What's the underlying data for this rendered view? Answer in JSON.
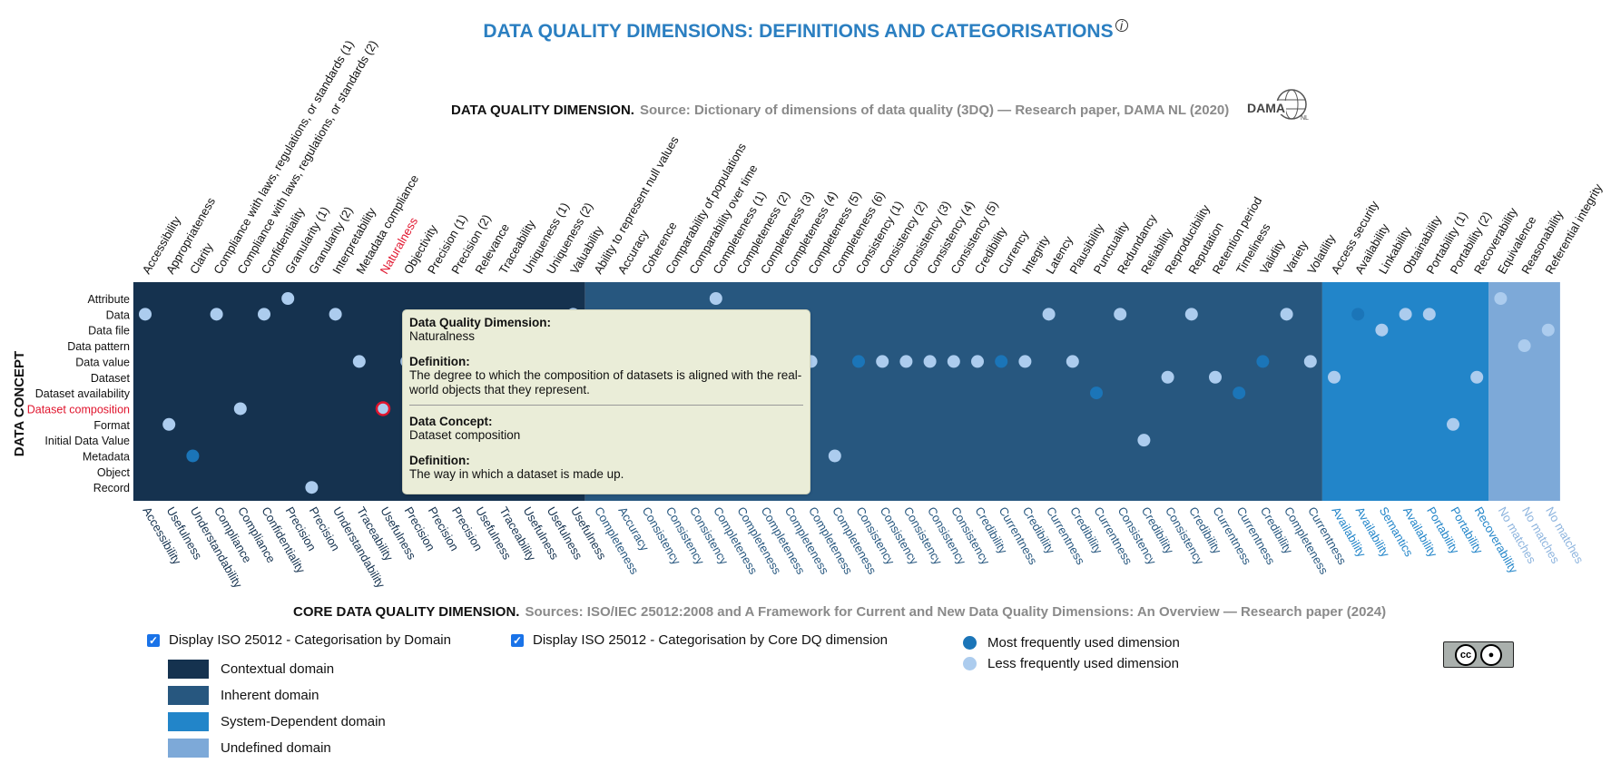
{
  "title": "DATA QUALITY DIMENSIONS: DEFINITIONS AND CATEGORISATIONS",
  "title_info_icon": "info-icon",
  "top_source": {
    "heading": "DATA QUALITY DIMENSION.",
    "text": "Source: Dictionary of dimensions of data quality (3DQ) — Research paper, DAMA NL (2020)",
    "logo_text": "DAMA",
    "logo_suffix": "NL"
  },
  "bottom_source": {
    "heading": "CORE DATA QUALITY DIMENSION.",
    "text": "Sources: ISO/IEC 25012:2008 and A Framework for Current and New Data Quality Dimensions: An Overview — Research paper (2024)"
  },
  "y_axis_label": "DATA CONCEPT",
  "highlighted_dimension": "Naturalness",
  "highlighted_concept": "Dataset composition",
  "checkboxes": [
    {
      "label": "Display ISO 25012 - Categorisation by Domain",
      "checked": true
    },
    {
      "label": "Display ISO 25012 - Categorisation by Core DQ dimension",
      "checked": true
    }
  ],
  "domain_legend": [
    {
      "label": "Contextual domain",
      "color": "#15324f"
    },
    {
      "label": "Inherent domain",
      "color": "#27577f"
    },
    {
      "label": "System-Dependent domain",
      "color": "#2285c9"
    },
    {
      "label": "Undefined domain",
      "color": "#7da9d8"
    }
  ],
  "frequency_legend": [
    {
      "label": "Most frequently used dimension",
      "color": "#1b75b8"
    },
    {
      "label": "Less frequently used dimension",
      "color": "#acccee"
    }
  ],
  "cc_badge": {
    "icon": "cc-by-license-icon",
    "text": "cc"
  },
  "tooltip": {
    "dim_heading": "Data Quality Dimension:",
    "dim_value": "Naturalness",
    "def_heading": "Definition:",
    "def_value": "The degree to which the composition of datasets is aligned with the real-world objects that they represent.",
    "concept_heading": "Data Concept:",
    "concept_value": "Dataset composition",
    "def2_heading": "Definition:",
    "def2_value": "The way in which a dataset is made up."
  },
  "chart_data": {
    "type": "scatter",
    "title": "DATA QUALITY DIMENSIONS: DEFINITIONS AND CATEGORISATIONS",
    "ylabel": "DATA CONCEPT",
    "concepts": [
      "Attribute",
      "Data",
      "Data file",
      "Data pattern",
      "Data value",
      "Dataset",
      "Dataset availability",
      "Dataset composition",
      "Format",
      "Initial Data Value",
      "Metadata",
      "Object",
      "Record"
    ],
    "dimensions": [
      "Accessibility",
      "Appropriateness",
      "Clarity",
      "Compliance with laws, regulations, or standards (1)",
      "Compliance with laws, regulations, or standards (2)",
      "Confidentiality",
      "Granularity (1)",
      "Granularity (2)",
      "Interpretability",
      "Metadata compliance",
      "Naturalness",
      "Objectivity",
      "Precision (1)",
      "Precision (2)",
      "Relevance",
      "Traceability",
      "Uniqueness (1)",
      "Uniqueness (2)",
      "Valuability",
      "Ability to represent null values",
      "Accuracy",
      "Coherence",
      "Comparability of populations",
      "Comparability over time",
      "Completeness (1)",
      "Completeness (2)",
      "Completeness (3)",
      "Completeness (4)",
      "Completeness (5)",
      "Completeness (6)",
      "Consistency (1)",
      "Consistency (2)",
      "Consistency (3)",
      "Consistency (4)",
      "Consistency (5)",
      "Credibility",
      "Currency",
      "Integrity",
      "Latency",
      "Plausibility",
      "Punctuality",
      "Redundancy",
      "Reliability",
      "Reproducibility",
      "Reputation",
      "Retention period",
      "Timeliness",
      "Validity",
      "Variety",
      "Volatility",
      "Access security",
      "Availability",
      "Linkability",
      "Obtainability",
      "Portability (1)",
      "Portability (2)",
      "Recoverability",
      "Equivalence",
      "Reasonability",
      "Referential integrity"
    ],
    "core_dimensions": [
      "Accessibility",
      "Usefulness",
      "Understandability",
      "Compliance",
      "Compliance",
      "Confidentiality",
      "Precision",
      "Precision",
      "Understandability",
      "Traceability",
      "Usefulness",
      "Precision",
      "Precision",
      "Precision",
      "Usefulness",
      "Traceability",
      "Usefulness",
      "Usefulness",
      "Usefulness",
      "Completeness",
      "Accuracy",
      "Consistency",
      "Consistency",
      "Consistency",
      "Completeness",
      "Completeness",
      "Completeness",
      "Completeness",
      "Completeness",
      "Completeness",
      "Consistency",
      "Consistency",
      "Consistency",
      "Consistency",
      "Consistency",
      "Credibility",
      "Currentness",
      "Credibility",
      "Currentness",
      "Credibility",
      "Currentness",
      "Consistency",
      "Credibility",
      "Consistency",
      "Credibility",
      "Currentness",
      "Currentness",
      "Credibility",
      "Completeness",
      "Currentness",
      "Availability",
      "Availability",
      "Semantics",
      "Availability",
      "Portability",
      "Portability",
      "Recoverability",
      "No matches",
      "No matches",
      "No matches"
    ],
    "domains": [
      "contextual",
      "contextual",
      "contextual",
      "contextual",
      "contextual",
      "contextual",
      "contextual",
      "contextual",
      "contextual",
      "contextual",
      "contextual",
      "contextual",
      "contextual",
      "contextual",
      "contextual",
      "contextual",
      "contextual",
      "contextual",
      "contextual",
      "inherent",
      "inherent",
      "inherent",
      "inherent",
      "inherent",
      "inherent",
      "inherent",
      "inherent",
      "inherent",
      "inherent",
      "inherent",
      "inherent",
      "inherent",
      "inherent",
      "inherent",
      "inherent",
      "inherent",
      "inherent",
      "inherent",
      "inherent",
      "inherent",
      "inherent",
      "inherent",
      "inherent",
      "inherent",
      "inherent",
      "inherent",
      "inherent",
      "inherent",
      "inherent",
      "inherent",
      "system",
      "system",
      "system",
      "system",
      "system",
      "system",
      "system",
      "undefined",
      "undefined",
      "undefined"
    ],
    "points": [
      {
        "x": "Accessibility",
        "y": "Data",
        "freq": "less"
      },
      {
        "x": "Appropriateness",
        "y": "Format",
        "freq": "less"
      },
      {
        "x": "Clarity",
        "y": "Metadata",
        "freq": "most"
      },
      {
        "x": "Compliance with laws, regulations, or standards (1)",
        "y": "Data",
        "freq": "less"
      },
      {
        "x": "Compliance with laws, regulations, or standards (2)",
        "y": "Dataset composition",
        "freq": "less"
      },
      {
        "x": "Confidentiality",
        "y": "Data",
        "freq": "less"
      },
      {
        "x": "Granularity (1)",
        "y": "Attribute",
        "freq": "less"
      },
      {
        "x": "Granularity (2)",
        "y": "Record",
        "freq": "less"
      },
      {
        "x": "Interpretability",
        "y": "Data",
        "freq": "less"
      },
      {
        "x": "Metadata compliance",
        "y": "Data value",
        "freq": "less"
      },
      {
        "x": "Naturalness",
        "y": "Dataset composition",
        "freq": "less"
      },
      {
        "x": "Objectivity",
        "y": "Data value",
        "freq": "less"
      },
      {
        "x": "Valuability",
        "y": "Data",
        "freq": "less"
      },
      {
        "x": "Ability to represent null values",
        "y": "Format",
        "freq": "less"
      },
      {
        "x": "Comparability over time",
        "y": "Data value",
        "freq": "less"
      },
      {
        "x": "Completeness (1)",
        "y": "Attribute",
        "freq": "less"
      },
      {
        "x": "Completeness (3)",
        "y": "Data file",
        "freq": "less"
      },
      {
        "x": "Completeness (5)",
        "y": "Data value",
        "freq": "less"
      },
      {
        "x": "Completeness (6)",
        "y": "Metadata",
        "freq": "less"
      },
      {
        "x": "Consistency (1)",
        "y": "Data value",
        "freq": "most"
      },
      {
        "x": "Consistency (2)",
        "y": "Data value",
        "freq": "less"
      },
      {
        "x": "Consistency (3)",
        "y": "Data value",
        "freq": "less"
      },
      {
        "x": "Consistency (4)",
        "y": "Data value",
        "freq": "less"
      },
      {
        "x": "Consistency (5)",
        "y": "Data value",
        "freq": "less"
      },
      {
        "x": "Credibility",
        "y": "Data value",
        "freq": "less"
      },
      {
        "x": "Currency",
        "y": "Data value",
        "freq": "most"
      },
      {
        "x": "Integrity",
        "y": "Data value",
        "freq": "less"
      },
      {
        "x": "Latency",
        "y": "Data",
        "freq": "less"
      },
      {
        "x": "Plausibility",
        "y": "Data value",
        "freq": "less"
      },
      {
        "x": "Punctuality",
        "y": "Dataset availability",
        "freq": "most"
      },
      {
        "x": "Redundancy",
        "y": "Data",
        "freq": "less"
      },
      {
        "x": "Reliability",
        "y": "Initial Data Value",
        "freq": "less"
      },
      {
        "x": "Reproducibility",
        "y": "Dataset",
        "freq": "less"
      },
      {
        "x": "Reputation",
        "y": "Data",
        "freq": "less"
      },
      {
        "x": "Retention period",
        "y": "Dataset",
        "freq": "less"
      },
      {
        "x": "Timeliness",
        "y": "Dataset availability",
        "freq": "most"
      },
      {
        "x": "Validity",
        "y": "Data value",
        "freq": "most"
      },
      {
        "x": "Variety",
        "y": "Data",
        "freq": "less"
      },
      {
        "x": "Volatility",
        "y": "Data value",
        "freq": "less"
      },
      {
        "x": "Access security",
        "y": "Dataset",
        "freq": "less"
      },
      {
        "x": "Availability",
        "y": "Data",
        "freq": "most"
      },
      {
        "x": "Linkability",
        "y": "Data file",
        "freq": "less"
      },
      {
        "x": "Obtainability",
        "y": "Data",
        "freq": "less"
      },
      {
        "x": "Portability (1)",
        "y": "Data",
        "freq": "less"
      },
      {
        "x": "Portability (2)",
        "y": "Format",
        "freq": "less"
      },
      {
        "x": "Recoverability",
        "y": "Dataset",
        "freq": "less"
      },
      {
        "x": "Equivalence",
        "y": "Attribute",
        "freq": "less"
      },
      {
        "x": "Reasonability",
        "y": "Data pattern",
        "freq": "less"
      },
      {
        "x": "Referential integrity",
        "y": "Data file",
        "freq": "less"
      }
    ]
  }
}
